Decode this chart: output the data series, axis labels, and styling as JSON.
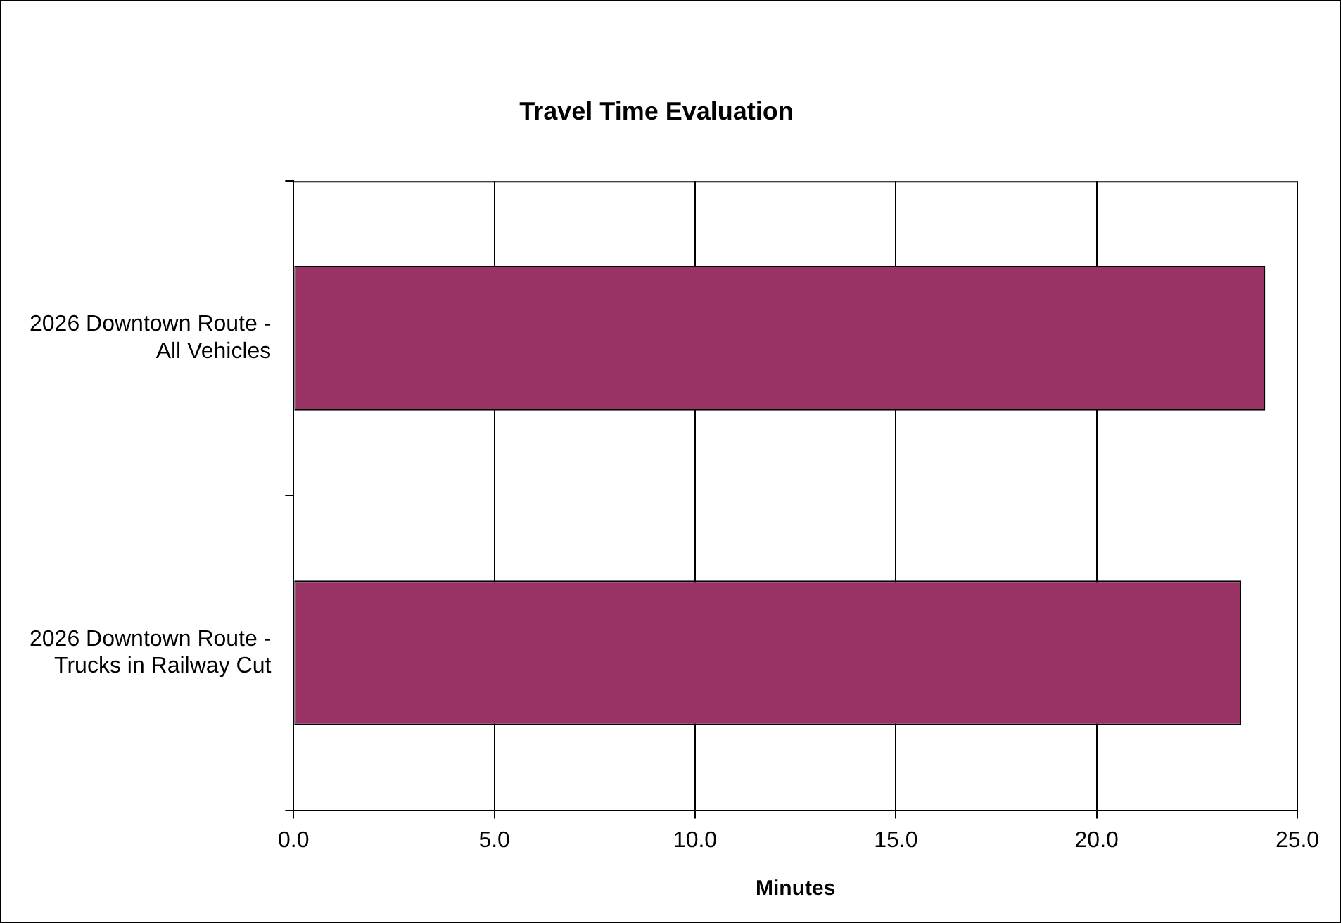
{
  "chart_data": {
    "type": "bar",
    "orientation": "horizontal",
    "title": "Travel Time Evaluation",
    "xlabel": "Minutes",
    "categories": [
      "2026 Downtown Route - All Vehicles",
      "2026 Downtown Route - Trucks in Railway Cut"
    ],
    "values": [
      24.2,
      23.6
    ],
    "color": "#993366",
    "xlim": [
      0,
      25
    ],
    "xticks": [
      {
        "value": 0,
        "label": "0.0"
      },
      {
        "value": 5,
        "label": "5.0"
      },
      {
        "value": 10,
        "label": "10.0"
      },
      {
        "value": 15,
        "label": "15.0"
      },
      {
        "value": 20,
        "label": "20.0"
      },
      {
        "value": 25,
        "label": "25.0"
      }
    ],
    "grid": "x",
    "legend": false
  }
}
